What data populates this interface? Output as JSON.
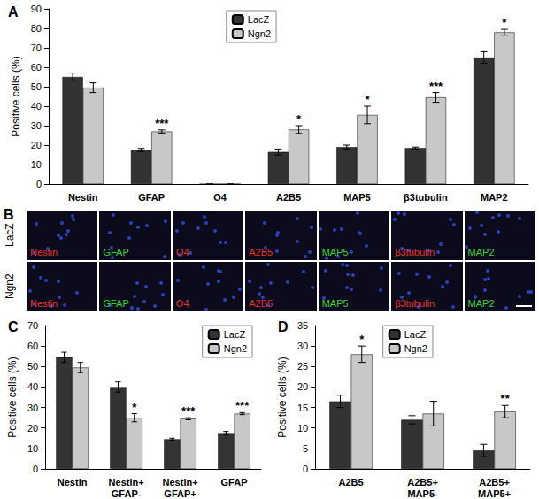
{
  "chart_data": [
    {
      "type": "bar",
      "title": "A",
      "categories": [
        "Nestin",
        "GFAP",
        "O4",
        "A2B5",
        "MAP5",
        "β3tubulin",
        "MAP2"
      ],
      "ylabel": "Positive cells (%)",
      "ylim": [
        0,
        90
      ],
      "yticks": [
        0,
        10,
        20,
        30,
        40,
        50,
        60,
        70,
        80,
        90
      ],
      "grid": false,
      "legend": "top",
      "series": [
        {
          "name": "LacZ",
          "color": "#333333",
          "values": [
            55,
            17.5,
            0,
            16.5,
            19,
            18.5,
            65
          ],
          "errors": [
            2,
            0.8,
            0,
            1.5,
            1,
            0.5,
            3
          ]
        },
        {
          "name": "Ngn2",
          "color": "#c8c8c8",
          "values": [
            49.5,
            27,
            0,
            28,
            35.5,
            44.5,
            78
          ],
          "errors": [
            2.5,
            0.8,
            0,
            2,
            4.5,
            2.5,
            1.5
          ]
        }
      ],
      "annotations": [
        null,
        "***",
        null,
        "*",
        "*",
        "***",
        "*"
      ]
    },
    {
      "type": "bar",
      "title": "C",
      "categories": [
        "Nestin",
        "Nestin+\nGFAP-",
        "Nestin+\nGFAP+",
        "GFAP"
      ],
      "ylabel": "Positive cells (%)",
      "ylim": [
        0,
        70
      ],
      "yticks": [
        0,
        10,
        20,
        30,
        40,
        50,
        60,
        70
      ],
      "grid": false,
      "legend": "upper right",
      "series": [
        {
          "name": "LacZ",
          "color": "#333333",
          "values": [
            54.5,
            40,
            14.5,
            17.5
          ],
          "errors": [
            2.5,
            2.5,
            0.5,
            0.8
          ]
        },
        {
          "name": "Ngn2",
          "color": "#c8c8c8",
          "values": [
            49.5,
            25,
            24.5,
            27
          ],
          "errors": [
            2.5,
            2,
            0.5,
            0.5
          ]
        }
      ],
      "annotations": [
        null,
        "*",
        "***",
        "***"
      ]
    },
    {
      "type": "bar",
      "title": "D",
      "categories": [
        "A2B5",
        "A2B5+\nMAP5-",
        "A2B5+\nMAP5+"
      ],
      "ylabel": "Positive cells (%)",
      "ylim": [
        0,
        35
      ],
      "yticks": [
        0,
        5,
        10,
        15,
        20,
        25,
        30,
        35
      ],
      "grid": false,
      "legend": "top",
      "series": [
        {
          "name": "LacZ",
          "color": "#333333",
          "values": [
            16.5,
            12,
            4.5
          ],
          "errors": [
            1.5,
            1,
            1.5
          ]
        },
        {
          "name": "Ngn2",
          "color": "#c8c8c8",
          "values": [
            28,
            13.5,
            14
          ],
          "errors": [
            2,
            3,
            1.5
          ]
        }
      ],
      "annotations": [
        "*",
        null,
        "**"
      ]
    }
  ],
  "image_panel": {
    "title": "B",
    "rows": [
      "LacZ",
      "Ngn2"
    ],
    "stains": [
      {
        "label": "Nestin",
        "color": "#e8322a"
      },
      {
        "label": "GFAP",
        "color": "#39d439"
      },
      {
        "label": "O4",
        "color": "#e8322a"
      },
      {
        "label": "A2B5",
        "color": "#e8322a"
      },
      {
        "label": "MAP5",
        "color": "#39d439"
      },
      {
        "label": "β3tubulin",
        "color": "#e8322a"
      },
      {
        "label": "MAP2",
        "color": "#39d439"
      }
    ]
  }
}
